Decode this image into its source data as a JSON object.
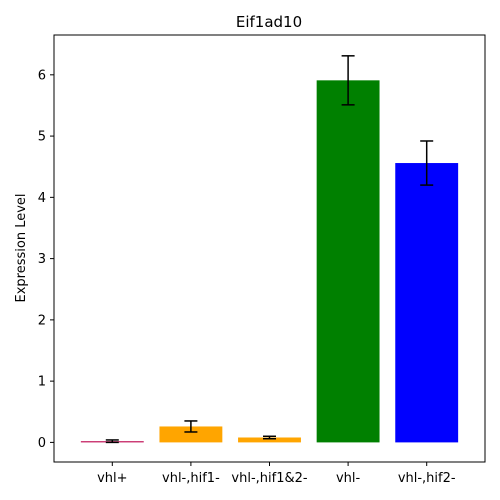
{
  "chart_data": {
    "type": "bar",
    "title": "Eif1ad10",
    "xlabel": "",
    "ylabel": "Expression Level",
    "categories": [
      "vhl+",
      "vhl-,hif1-",
      "vhl-,hif1&2-",
      "vhl-",
      "vhl-,hif2-"
    ],
    "values": [
      0.02,
      0.26,
      0.08,
      5.91,
      4.56
    ],
    "error": [
      0.02,
      0.09,
      0.02,
      0.4,
      0.36
    ],
    "colors": [
      "#c2185b",
      "#ffa500",
      "#ffa500",
      "#008000",
      "#0000ff"
    ],
    "ylim": [
      -0.32,
      6.65
    ],
    "yticks": [
      0,
      1,
      2,
      3,
      4,
      5,
      6
    ],
    "grid": false,
    "legend": "none"
  }
}
